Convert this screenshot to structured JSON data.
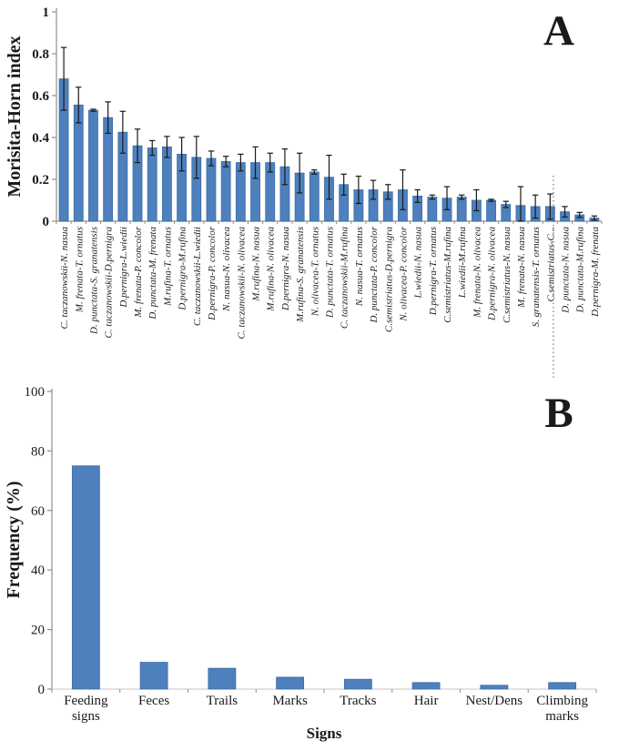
{
  "colors": {
    "bar_fill": "#4d80bd",
    "bar_border": "#3c6ca5",
    "error_bar": "#1a1a1a",
    "axis": "#8f8f8f",
    "axis_light": "#c4c4c4",
    "text": "#1a1a1a"
  },
  "chart_data": [
    {
      "type": "bar",
      "panel_label": "A",
      "title": "",
      "ylabel": "Morisita-Horn index",
      "xlabel": "",
      "ylim": [
        0,
        1
      ],
      "yticks": [
        0,
        0.2,
        0.4,
        0.6,
        0.8,
        1
      ],
      "ytick_labels": [
        "0",
        "0.2",
        "0.4",
        "0.6",
        "0.8",
        "1"
      ],
      "grid": false,
      "legend": null,
      "error_bars": true,
      "categories": [
        "C. taczanowskii-N. nasua",
        "M. frenata-T. ornatus",
        "D. punctata-S. granatensis",
        "C. taczanowskii-D.pernigra",
        "D.pernigra-L.wiedii",
        "M. frenata-P. concolor",
        "D. punctata-M. frenata",
        "M.rufina-T. ornatus",
        "D.pernigra-M.rufina",
        "C. taczanowskii-L.wiedii",
        "D.pernigra-P. concolor",
        "N. nasua-N. olivacea",
        "C. taczanowskii-N. olivacea",
        "M.rufina-N. nasua",
        "M.rufina-N. olivacea",
        "D.pernigra-N. nasua",
        "M.rufina-S. granatensis",
        "N. olivacea-T. ornatus",
        "D. punctata-T. ornatus",
        "C. taczanowskii-M.rufina",
        "N. nasua-T. ornatus",
        "D. punctata-P. concolor",
        "C.semistriatus-D.pernigra",
        "N. olivacea-P. concolor",
        "L.wiedii-N. nasua",
        "D.pernigra-T. ornatus",
        "C.semistriatus-M.rufina",
        "L.wiedii-M.rufina",
        "M. frenata-N. olivacea",
        "D.pernigra-N. olivacea",
        "C.semistriatus-N. nasua",
        "M. frenata-N. nasua",
        "S. granatensis-T. ornatus",
        "C.semistriatus-C...",
        "D. punctata-N. nasua",
        "D. punctata-M.rufina",
        "D.pernigra-M. frenata"
      ],
      "values": [
        0.68,
        0.555,
        0.53,
        0.495,
        0.425,
        0.36,
        0.35,
        0.355,
        0.32,
        0.305,
        0.3,
        0.285,
        0.28,
        0.28,
        0.28,
        0.26,
        0.23,
        0.235,
        0.21,
        0.175,
        0.15,
        0.15,
        0.14,
        0.15,
        0.12,
        0.115,
        0.11,
        0.115,
        0.1,
        0.1,
        0.08,
        0.075,
        0.07,
        0.07,
        0.045,
        0.03,
        0.015
      ],
      "errors": [
        0.15,
        0.085,
        0.005,
        0.075,
        0.1,
        0.08,
        0.035,
        0.05,
        0.08,
        0.1,
        0.035,
        0.025,
        0.04,
        0.075,
        0.045,
        0.085,
        0.095,
        0.01,
        0.105,
        0.05,
        0.065,
        0.045,
        0.035,
        0.095,
        0.03,
        0.01,
        0.055,
        0.01,
        0.05,
        0.005,
        0.015,
        0.09,
        0.055,
        0.06,
        0.025,
        0.012,
        0.01
      ]
    },
    {
      "type": "bar",
      "panel_label": "B",
      "title": "",
      "ylabel": "Frequency (%)",
      "xlabel": "Signs",
      "ylim": [
        0,
        100
      ],
      "yticks": [
        0,
        20,
        40,
        60,
        80,
        100
      ],
      "ytick_labels": [
        "0",
        "20",
        "40",
        "60",
        "80",
        "100"
      ],
      "grid": false,
      "legend": null,
      "error_bars": false,
      "categories": [
        "Feeding signs",
        "Feces",
        "Trails",
        "Marks",
        "Tracks",
        "Hair",
        "Nest/Dens",
        "Climbing marks"
      ],
      "values": [
        75,
        9,
        7,
        4,
        3.3,
        2.2,
        1.3,
        2.2
      ]
    }
  ]
}
